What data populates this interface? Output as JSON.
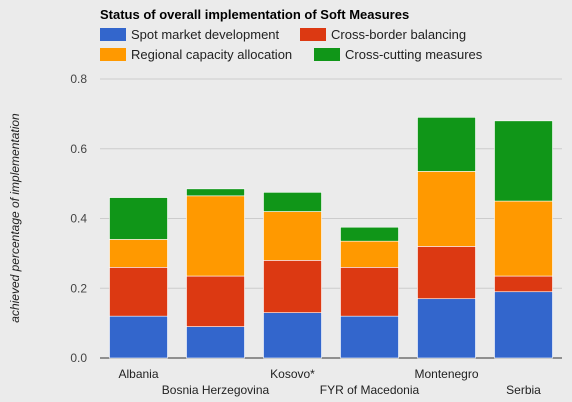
{
  "chart_data": {
    "type": "bar",
    "stacked": true,
    "title": "Status of overall implementation of Soft Measures",
    "ylabel": "achieved percentage of implementation",
    "xlabel": "",
    "ylim": [
      0,
      0.8
    ],
    "yticks": [
      "0.0",
      "0.2",
      "0.4",
      "0.6",
      "0.8"
    ],
    "grid": true,
    "legend_position": "top",
    "categories": [
      "Albania",
      "Bosnia Herzegovina",
      "Kosovo*",
      "FYR of Macedonia",
      "Montenegro",
      "Serbia"
    ],
    "series": [
      {
        "name": "Spot market development",
        "color": "#3366cc",
        "values": [
          0.12,
          0.09,
          0.13,
          0.12,
          0.17,
          0.19
        ]
      },
      {
        "name": "Cross-border balancing",
        "color": "#dc3912",
        "values": [
          0.14,
          0.145,
          0.15,
          0.14,
          0.15,
          0.045
        ]
      },
      {
        "name": "Regional capacity allocation",
        "color": "#ff9900",
        "values": [
          0.08,
          0.23,
          0.14,
          0.075,
          0.215,
          0.215
        ]
      },
      {
        "name": "Cross-cutting measures",
        "color": "#109618",
        "values": [
          0.12,
          0.02,
          0.055,
          0.04,
          0.155,
          0.23
        ]
      }
    ]
  }
}
